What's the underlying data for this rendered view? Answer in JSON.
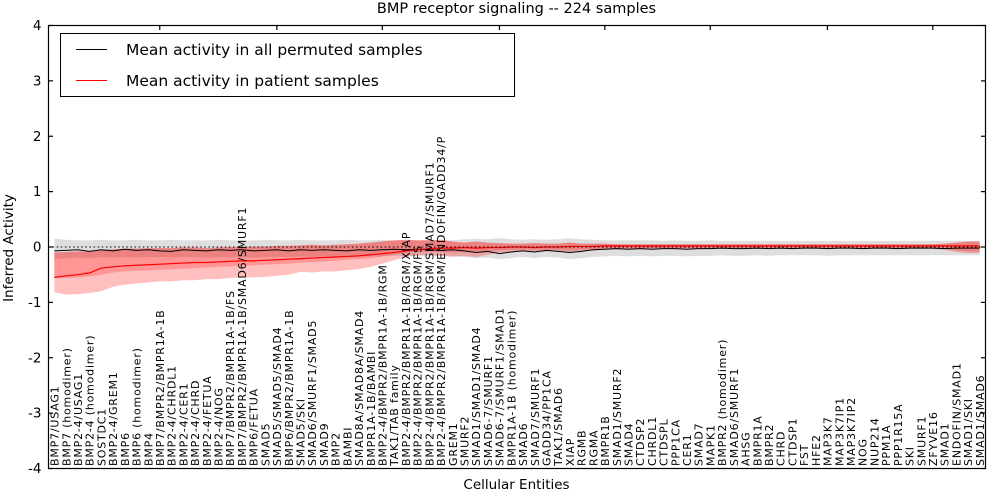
{
  "figure": {
    "title": "BMP receptor signaling -- 224 samples",
    "xlabel": "Cellular Entities",
    "ylabel": "Inferred Activity"
  },
  "legend": {
    "entries": [
      {
        "label": "Mean activity in all permuted samples",
        "color": "#000000"
      },
      {
        "label": "Mean activity in patient samples",
        "color": "#ff0000"
      }
    ]
  },
  "chart_data": {
    "type": "line",
    "title": "BMP receptor signaling -- 224 samples",
    "xlabel": "Cellular Entities",
    "ylabel": "Inferred Activity",
    "ylim": [
      -4,
      4
    ],
    "yticks": [
      4,
      3,
      2,
      1,
      0,
      -1,
      -2,
      -3,
      -4
    ],
    "grid": false,
    "legend_position": "upper left",
    "zero_line_style": "dotted",
    "x_major_tick_indices": [
      9,
      19,
      28,
      38,
      47,
      56,
      66,
      75
    ],
    "categories": [
      "BMP7/USAG1",
      "BMP7 (homodimer)",
      "BMP2-4/USAG1",
      "BMP2-4 (homodimer)",
      "SOSTDC1",
      "BMP2-4/GREM1",
      "BMP6",
      "BMP6 (homodimer)",
      "BMP4",
      "BMP7/BMPR2/BMPR1A-1B",
      "BMP2-4/CHRDL1",
      "BMP2-4/CER1",
      "BMP2-4/CHRD",
      "BMP2-4/FETUA",
      "BMP2-4/NOG",
      "BMP7/BMPR2/BMPR1A-1B/FS",
      "BMP7/BMPR2/BMPR1A-1B/SMAD6/SMURF1",
      "BMP6/FETUA",
      "SMAD5",
      "SMAD5/SMAD5/SMAD4",
      "BMP6/BMPR2/BMPR1A-1B",
      "SMAD5/SKI",
      "SMAD6/SMURF1/SMAD5",
      "SMAD9",
      "BMP2",
      "BAMBI",
      "SMAD8A/SMAD8A/SMAD4",
      "BMPR1A-1B/BAMBI",
      "BMP2-4/BMPR2/BMPR1A-1B/RGM",
      "TAK1/TAB family",
      "BMP2-4/BMPR2/BMPR1A-1B/RGM/XIAP",
      "BMP2-4/BMPR2/BMPR1A-1B/RGM/FS",
      "BMP2-4/BMPR2/BMPR1A-1B/RGM/SMAD7/SMURF1",
      "BMP2-4/BMPR2/BMPR1A-1B/RGM/ENDOFIN/GADD34/P",
      "GREM1",
      "SMURF2",
      "SMAD1/SMAD1/SMAD4",
      "SMAD6-7/SMURF1",
      "SMAD6-7/SMURF1/SMAD1",
      "BMPR1A-1B (homodimer)",
      "SMAD6",
      "SMAD7/SMURF1",
      "GADD34/PP1CA",
      "TAK1/SMAD6",
      "XIAP",
      "RGMB",
      "RGMA",
      "BMPR1B",
      "SMAD1/SMURF2",
      "SMAD4",
      "CTDSP2",
      "CHRDL1",
      "CTDSPL",
      "PPP1CA",
      "CER1",
      "SMAD7",
      "MAPK1",
      "BMPR2 (homodimer)",
      "SMAD6/SMURF1",
      "AHSG",
      "BMPR1A",
      "BMPR2",
      "CHRD",
      "CTDSP1",
      "FST",
      "HFE2",
      "MAP3K7",
      "MAP3K7IP1",
      "MAP3K7IP2",
      "NOG",
      "NUP214",
      "PPM1A",
      "PPP1R15A",
      "SKI",
      "SMURF1",
      "ZFYVE16",
      "SMAD1",
      "ENDOFIN/SMAD1",
      "SMAD1/SKI",
      "SMAD1/SMAD6"
    ],
    "series": [
      {
        "name": "Mean activity in all permuted samples",
        "color": "#000000",
        "values": [
          -0.07,
          -0.06,
          -0.05,
          -0.08,
          -0.05,
          -0.07,
          -0.04,
          -0.06,
          -0.05,
          -0.07,
          -0.08,
          -0.05,
          -0.06,
          -0.07,
          -0.05,
          -0.06,
          -0.05,
          -0.07,
          -0.06,
          -0.05,
          -0.07,
          -0.05,
          -0.06,
          -0.05,
          -0.06,
          -0.07,
          -0.05,
          -0.06,
          -0.05,
          -0.04,
          -0.05,
          -0.04,
          -0.05,
          -0.06,
          -0.05,
          -0.07,
          -0.1,
          -0.08,
          -0.12,
          -0.09,
          -0.07,
          -0.09,
          -0.06,
          -0.08,
          -0.1,
          -0.08,
          -0.05,
          -0.04,
          -0.03,
          -0.04,
          -0.03,
          -0.04,
          -0.03,
          -0.03,
          -0.04,
          -0.03,
          -0.03,
          -0.02,
          -0.03,
          -0.03,
          -0.02,
          -0.03,
          -0.02,
          -0.03,
          -0.02,
          -0.02,
          -0.03,
          -0.02,
          -0.02,
          -0.03,
          -0.02,
          -0.02,
          -0.03,
          -0.02,
          -0.02,
          -0.02,
          -0.03,
          -0.02,
          -0.02,
          -0.02
        ]
      },
      {
        "name": "Mean activity in patient samples",
        "color": "#ff0000",
        "values": [
          -0.55,
          -0.52,
          -0.5,
          -0.47,
          -0.38,
          -0.36,
          -0.34,
          -0.33,
          -0.32,
          -0.31,
          -0.3,
          -0.29,
          -0.28,
          -0.28,
          -0.27,
          -0.26,
          -0.25,
          -0.25,
          -0.24,
          -0.23,
          -0.22,
          -0.21,
          -0.2,
          -0.19,
          -0.18,
          -0.17,
          -0.16,
          -0.14,
          -0.12,
          -0.1,
          -0.07,
          -0.05,
          -0.03,
          -0.02,
          -0.02,
          -0.01,
          -0.02,
          -0.01,
          -0.01,
          0.0,
          0.0,
          -0.01,
          0.0,
          0.0,
          0.01,
          0.01,
          0.01,
          0.02,
          0.02,
          0.02,
          0.02,
          0.02,
          0.02,
          0.02,
          0.02,
          0.02,
          0.02,
          0.02,
          0.02,
          0.02,
          0.02,
          0.02,
          0.02,
          0.02,
          0.02,
          0.02,
          0.02,
          0.02,
          0.02,
          0.02,
          0.02,
          0.02,
          0.02,
          0.02,
          0.02,
          0.02,
          0.02,
          0.02,
          0.02,
          0.02
        ]
      }
    ],
    "bands": [
      {
        "name": "permuted-samples-range",
        "color": "rgba(0,0,0,0.13)",
        "upper": [
          0.15,
          0.13,
          0.12,
          0.12,
          0.13,
          0.12,
          0.12,
          0.13,
          0.12,
          0.12,
          0.13,
          0.12,
          0.12,
          0.12,
          0.13,
          0.12,
          0.12,
          0.12,
          0.13,
          0.12,
          0.12,
          0.13,
          0.12,
          0.12,
          0.12,
          0.13,
          0.12,
          0.12,
          0.13,
          0.12,
          0.12,
          0.12,
          0.13,
          0.12,
          0.12,
          0.14,
          0.15,
          0.14,
          0.16,
          0.14,
          0.13,
          0.14,
          0.13,
          0.14,
          0.16,
          0.14,
          0.13,
          0.12,
          0.12,
          0.12,
          0.12,
          0.12,
          0.11,
          0.12,
          0.11,
          0.11,
          0.12,
          0.11,
          0.11,
          0.11,
          0.11,
          0.11,
          0.11,
          0.11,
          0.11,
          0.11,
          0.11,
          0.11,
          0.11,
          0.11,
          0.11,
          0.11,
          0.11,
          0.11,
          0.11,
          0.11,
          0.11,
          0.11,
          0.11,
          0.11
        ],
        "lower": [
          -0.22,
          -0.2,
          -0.19,
          -0.2,
          -0.18,
          -0.19,
          -0.18,
          -0.19,
          -0.18,
          -0.18,
          -0.19,
          -0.18,
          -0.18,
          -0.19,
          -0.18,
          -0.18,
          -0.18,
          -0.19,
          -0.18,
          -0.18,
          -0.18,
          -0.17,
          -0.18,
          -0.17,
          -0.17,
          -0.18,
          -0.17,
          -0.17,
          -0.17,
          -0.16,
          -0.16,
          -0.16,
          -0.17,
          -0.16,
          -0.16,
          -0.18,
          -0.2,
          -0.19,
          -0.22,
          -0.2,
          -0.18,
          -0.2,
          -0.18,
          -0.19,
          -0.22,
          -0.2,
          -0.18,
          -0.17,
          -0.16,
          -0.17,
          -0.16,
          -0.17,
          -0.16,
          -0.16,
          -0.17,
          -0.16,
          -0.16,
          -0.15,
          -0.16,
          -0.16,
          -0.15,
          -0.16,
          -0.15,
          -0.15,
          -0.15,
          -0.15,
          -0.16,
          -0.15,
          -0.15,
          -0.15,
          -0.15,
          -0.15,
          -0.15,
          -0.15,
          -0.15,
          -0.15,
          -0.15,
          -0.15,
          -0.15,
          -0.15
        ]
      },
      {
        "name": "patient-samples-range-outer",
        "color": "rgba(255,0,0,0.25)",
        "upper": [
          -0.1,
          -0.09,
          -0.08,
          -0.08,
          -0.05,
          -0.04,
          -0.03,
          -0.03,
          -0.02,
          -0.02,
          -0.02,
          -0.01,
          -0.01,
          -0.02,
          -0.01,
          0.0,
          0.0,
          0.01,
          0.01,
          0.02,
          0.02,
          0.03,
          0.04,
          0.03,
          0.04,
          0.05,
          0.06,
          0.08,
          0.1,
          0.12,
          0.13,
          0.12,
          0.12,
          0.13,
          0.1,
          0.08,
          0.1,
          0.08,
          0.07,
          0.06,
          0.06,
          0.07,
          0.06,
          0.06,
          0.08,
          0.06,
          0.06,
          0.06,
          0.05,
          0.05,
          0.05,
          0.05,
          0.05,
          0.05,
          0.05,
          0.05,
          0.05,
          0.05,
          0.05,
          0.05,
          0.05,
          0.05,
          0.05,
          0.05,
          0.05,
          0.05,
          0.05,
          0.05,
          0.05,
          0.05,
          0.05,
          0.05,
          0.05,
          0.05,
          0.05,
          0.05,
          0.06,
          0.08,
          0.1,
          0.1
        ],
        "lower": [
          -0.82,
          -0.86,
          -0.85,
          -0.83,
          -0.8,
          -0.72,
          -0.68,
          -0.66,
          -0.64,
          -0.62,
          -0.62,
          -0.6,
          -0.6,
          -0.58,
          -0.58,
          -0.56,
          -0.55,
          -0.55,
          -0.54,
          -0.52,
          -0.5,
          -0.45,
          -0.46,
          -0.44,
          -0.44,
          -0.42,
          -0.4,
          -0.36,
          -0.3,
          -0.24,
          -0.18,
          -0.15,
          -0.14,
          -0.16,
          -0.18,
          -0.16,
          -0.18,
          -0.14,
          -0.1,
          -0.09,
          -0.08,
          -0.09,
          -0.08,
          -0.08,
          -0.1,
          -0.08,
          -0.06,
          -0.05,
          -0.04,
          -0.04,
          -0.04,
          -0.04,
          -0.03,
          -0.04,
          -0.03,
          -0.03,
          -0.03,
          -0.03,
          -0.03,
          -0.03,
          -0.03,
          -0.03,
          -0.03,
          -0.03,
          -0.03,
          -0.03,
          -0.03,
          -0.03,
          -0.03,
          -0.03,
          -0.03,
          -0.03,
          -0.03,
          -0.03,
          -0.03,
          -0.03,
          -0.05,
          -0.09,
          -0.11,
          -0.11
        ]
      },
      {
        "name": "patient-samples-range-inner",
        "color": "rgba(255,0,0,0.22)",
        "upper": [
          -0.1,
          -0.09,
          -0.08,
          -0.08,
          -0.05,
          -0.04,
          -0.03,
          -0.03,
          -0.02,
          -0.02,
          -0.02,
          -0.01,
          -0.01,
          -0.02,
          -0.01,
          0.0,
          0.0,
          0.01,
          0.01,
          0.02,
          0.02,
          0.03,
          0.04,
          0.03,
          0.04,
          0.05,
          0.06,
          0.08,
          0.1,
          0.12,
          0.13,
          0.12,
          0.12,
          0.13,
          0.1,
          0.08,
          0.1,
          0.08,
          0.07,
          0.06,
          0.06,
          0.07,
          0.06,
          0.06,
          0.08,
          0.06,
          0.06,
          0.06,
          0.05,
          0.05,
          0.05,
          0.05,
          0.05,
          0.05,
          0.05,
          0.05,
          0.05,
          0.05,
          0.05,
          0.05,
          0.05,
          0.05,
          0.05,
          0.05,
          0.05,
          0.05,
          0.05,
          0.05,
          0.05,
          0.05,
          0.05,
          0.05,
          0.05,
          0.05,
          0.05,
          0.05,
          0.06,
          0.08,
          0.1,
          0.1
        ],
        "lower": [
          -0.56,
          -0.56,
          -0.55,
          -0.53,
          -0.5,
          -0.46,
          -0.44,
          -0.43,
          -0.42,
          -0.41,
          -0.4,
          -0.39,
          -0.38,
          -0.37,
          -0.36,
          -0.35,
          -0.34,
          -0.33,
          -0.32,
          -0.31,
          -0.3,
          -0.28,
          -0.27,
          -0.26,
          -0.25,
          -0.23,
          -0.22,
          -0.2,
          -0.17,
          -0.14,
          -0.11,
          -0.09,
          -0.08,
          -0.09,
          -0.1,
          -0.09,
          -0.1,
          -0.08,
          -0.06,
          -0.05,
          -0.05,
          -0.05,
          -0.05,
          -0.05,
          -0.06,
          -0.05,
          -0.04,
          -0.03,
          -0.03,
          -0.03,
          -0.02,
          -0.02,
          -0.02,
          -0.02,
          -0.02,
          -0.02,
          -0.02,
          -0.02,
          -0.02,
          -0.02,
          -0.02,
          -0.02,
          -0.02,
          -0.02,
          -0.02,
          -0.02,
          -0.02,
          -0.02,
          -0.02,
          -0.02,
          -0.02,
          -0.02,
          -0.02,
          -0.02,
          -0.02,
          -0.02,
          -0.03,
          -0.06,
          -0.08,
          -0.08
        ]
      }
    ]
  }
}
